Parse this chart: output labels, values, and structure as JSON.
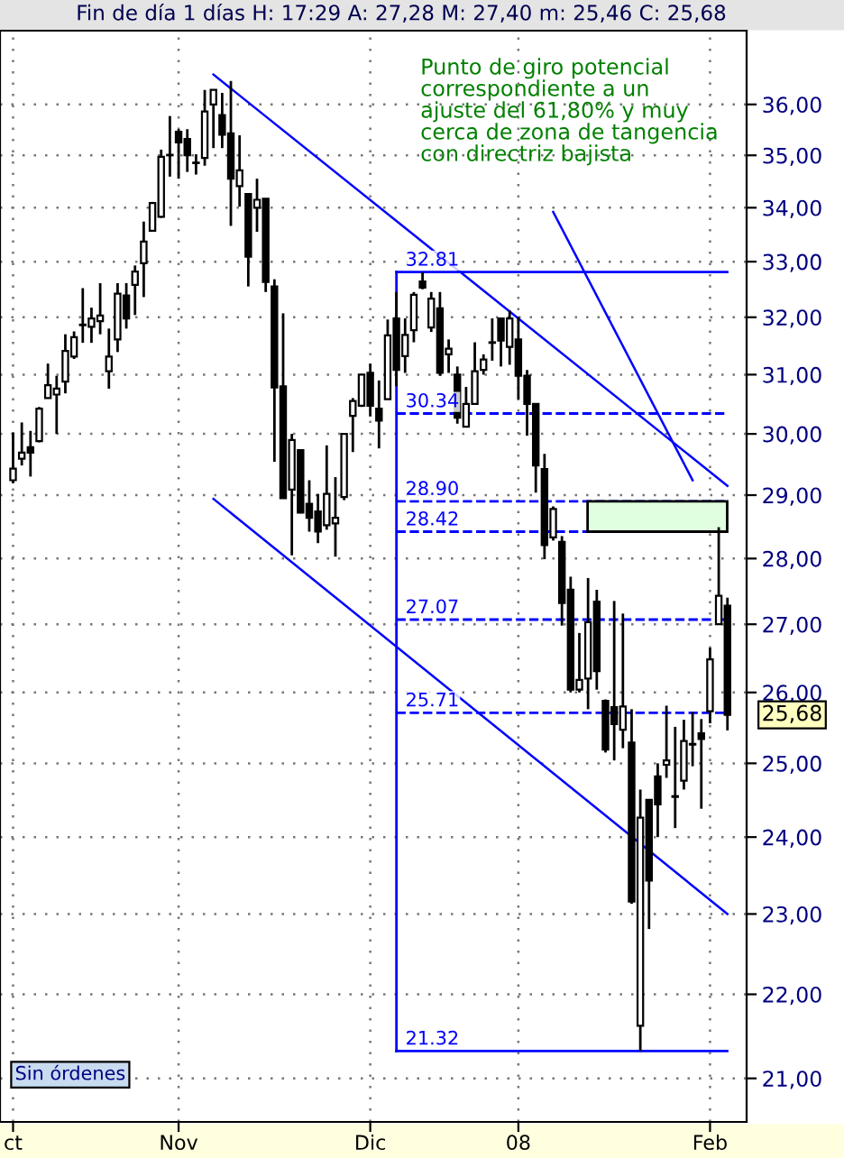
{
  "chart_data": {
    "type": "candlestick",
    "title": "Fin de día 1 días H: 17:29 A: 27,28 M: 27,40 m: 25,46 C: 25,68",
    "categories": [
      "ct",
      null,
      null,
      null,
      null,
      null,
      null,
      null,
      null,
      null,
      null,
      null,
      null,
      null,
      null,
      null,
      null,
      null,
      null,
      "Nov",
      null,
      null,
      null,
      null,
      null,
      null,
      null,
      null,
      null,
      null,
      null,
      null,
      null,
      null,
      null,
      null,
      null,
      null,
      null,
      null,
      null,
      "Dic",
      null,
      null,
      null,
      null,
      null,
      null,
      null,
      null,
      null,
      null,
      null,
      null,
      null,
      null,
      null,
      null,
      "08",
      null,
      null,
      null,
      null,
      null,
      null,
      null,
      null,
      null,
      null,
      null,
      null,
      null,
      null,
      null,
      null,
      null,
      null,
      null,
      null,
      null,
      "Feb",
      null,
      null
    ],
    "ohlc": [
      [
        29.24,
        30.02,
        29.19,
        29.43
      ],
      [
        29.59,
        30.19,
        29.48,
        29.69
      ],
      [
        29.78,
        30.05,
        29.3,
        29.69
      ],
      [
        29.88,
        30.45,
        29.86,
        30.42
      ],
      [
        30.6,
        31.19,
        30.6,
        30.82
      ],
      [
        30.66,
        30.98,
        30.0,
        30.76
      ],
      [
        30.88,
        31.7,
        30.68,
        31.41
      ],
      [
        31.31,
        31.75,
        31.27,
        31.65
      ],
      [
        31.86,
        32.52,
        31.55,
        31.87
      ],
      [
        31.83,
        32.17,
        31.55,
        31.98
      ],
      [
        31.93,
        32.61,
        31.7,
        32.03
      ],
      [
        31.06,
        31.8,
        30.76,
        31.31
      ],
      [
        31.61,
        32.61,
        31.39,
        32.42
      ],
      [
        32.39,
        32.61,
        31.8,
        31.98
      ],
      [
        32.58,
        32.93,
        32.04,
        32.82
      ],
      [
        32.97,
        33.74,
        32.36,
        33.37
      ],
      [
        33.57,
        34.11,
        33.55,
        34.09
      ],
      [
        33.83,
        35.11,
        33.81,
        34.97
      ],
      [
        35.0,
        35.77,
        34.59,
        35.01
      ],
      [
        35.46,
        35.51,
        34.55,
        35.25
      ],
      [
        35.32,
        35.51,
        34.68,
        35.0
      ],
      [
        34.85,
        35.02,
        34.63,
        34.86
      ],
      [
        34.95,
        36.29,
        34.8,
        35.86
      ],
      [
        36.0,
        36.29,
        35.14,
        36.29
      ],
      [
        35.79,
        36.23,
        35.14,
        35.4
      ],
      [
        35.43,
        36.47,
        33.66,
        34.55
      ],
      [
        34.41,
        35.39,
        34.02,
        34.71
      ],
      [
        34.26,
        34.26,
        32.55,
        33.09
      ],
      [
        34.0,
        34.55,
        33.55,
        34.15
      ],
      [
        34.17,
        34.17,
        32.45,
        32.63
      ],
      [
        32.55,
        32.68,
        29.54,
        30.78
      ],
      [
        30.8,
        32.07,
        28.95,
        28.95
      ],
      [
        29.09,
        30.0,
        28.05,
        29.9
      ],
      [
        29.73,
        29.73,
        28.71,
        28.72
      ],
      [
        28.86,
        29.24,
        28.42,
        28.64
      ],
      [
        28.74,
        29.02,
        28.24,
        28.42
      ],
      [
        28.52,
        29.81,
        28.45,
        29.02
      ],
      [
        28.55,
        29.29,
        28.03,
        28.64
      ],
      [
        28.97,
        30.0,
        28.92,
        30.0
      ],
      [
        30.3,
        30.6,
        29.7,
        30.55
      ],
      [
        30.47,
        31.0,
        30.45,
        31.0
      ],
      [
        31.03,
        31.19,
        30.29,
        30.47
      ],
      [
        30.42,
        30.9,
        29.76,
        30.22
      ],
      [
        30.58,
        31.96,
        30.58,
        31.68
      ],
      [
        31.98,
        32.45,
        30.8,
        31.08
      ],
      [
        31.32,
        31.98,
        31.03,
        31.69
      ],
      [
        31.77,
        32.45,
        31.56,
        32.4
      ],
      [
        32.64,
        32.81,
        32.5,
        32.53
      ],
      [
        31.82,
        32.45,
        31.74,
        32.33
      ],
      [
        32.16,
        32.45,
        30.98,
        31.03
      ],
      [
        31.35,
        31.61,
        31.03,
        31.45
      ],
      [
        31.0,
        31.14,
        30.17,
        30.27
      ],
      [
        30.12,
        30.79,
        30.12,
        30.5
      ],
      [
        30.5,
        31.56,
        30.5,
        31.06
      ],
      [
        31.08,
        31.35,
        31.0,
        31.26
      ],
      [
        31.55,
        31.98,
        31.24,
        31.56
      ],
      [
        31.98,
        31.98,
        31.14,
        31.59
      ],
      [
        31.48,
        32.12,
        31.17,
        31.98
      ],
      [
        31.61,
        32.01,
        30.58,
        30.98
      ],
      [
        30.98,
        31.08,
        29.97,
        30.5
      ],
      [
        30.5,
        30.5,
        29.04,
        29.48
      ],
      [
        29.42,
        29.67,
        27.99,
        28.21
      ],
      [
        28.33,
        28.82,
        28.28,
        28.78
      ],
      [
        28.26,
        28.35,
        26.98,
        27.32
      ],
      [
        27.52,
        27.72,
        26.0,
        26.04
      ],
      [
        26.04,
        26.87,
        26.0,
        26.18
      ],
      [
        26.2,
        27.7,
        25.76,
        27.03
      ],
      [
        27.34,
        27.52,
        26.04,
        26.31
      ],
      [
        25.88,
        25.9,
        25.15,
        25.19
      ],
      [
        25.79,
        27.35,
        25.04,
        25.55
      ],
      [
        25.47,
        27.16,
        25.21,
        25.8
      ],
      [
        25.29,
        25.76,
        23.13,
        23.16
      ],
      [
        21.62,
        24.64,
        21.32,
        24.26
      ],
      [
        24.5,
        24.5,
        22.81,
        23.43
      ],
      [
        24.82,
        25.0,
        24.0,
        24.44
      ],
      [
        24.98,
        25.81,
        24.8,
        25.04
      ],
      [
        24.54,
        25.51,
        24.12,
        24.55
      ],
      [
        24.76,
        25.61,
        24.64,
        25.31
      ],
      [
        25.26,
        25.72,
        24.96,
        25.27
      ],
      [
        25.42,
        25.62,
        24.38,
        25.34
      ],
      [
        25.73,
        26.65,
        25.56,
        26.48
      ],
      [
        27.0,
        28.49,
        27.0,
        27.43
      ],
      [
        27.28,
        27.4,
        25.46,
        25.68
      ]
    ],
    "series": [
      {
        "type": "line",
        "color": "#0000ff",
        "values": [
          null,
          null,
          null,
          null,
          null,
          null,
          null,
          null,
          null,
          null,
          null,
          null,
          null,
          null,
          null,
          null,
          null,
          null,
          null,
          null,
          null,
          null,
          null,
          36.6,
          null,
          null,
          null,
          null,
          null,
          null,
          null,
          null,
          null,
          null,
          null,
          null,
          null,
          null,
          null,
          null,
          null,
          null,
          null,
          null,
          null,
          null,
          null,
          null,
          null,
          null,
          null,
          null,
          null,
          null,
          null,
          null,
          null,
          null,
          null,
          null,
          null,
          null,
          null,
          null,
          null,
          null,
          null,
          null,
          null,
          null,
          null,
          null,
          null,
          null,
          null,
          null,
          null,
          null,
          null,
          null,
          null,
          null,
          29.15
        ]
      },
      {
        "type": "line",
        "color": "#0000ff",
        "values": [
          null,
          null,
          null,
          null,
          null,
          null,
          null,
          null,
          null,
          null,
          null,
          null,
          null,
          null,
          null,
          null,
          null,
          null,
          null,
          null,
          null,
          null,
          null,
          28.94,
          null,
          null,
          null,
          null,
          null,
          null,
          null,
          null,
          null,
          null,
          null,
          null,
          null,
          null,
          null,
          null,
          null,
          null,
          null,
          null,
          null,
          null,
          null,
          null,
          null,
          null,
          null,
          null,
          null,
          null,
          null,
          null,
          null,
          null,
          null,
          null,
          null,
          null,
          null,
          null,
          null,
          null,
          null,
          null,
          null,
          null,
          null,
          null,
          null,
          null,
          null,
          null,
          null,
          null,
          null,
          null,
          null,
          null,
          23.0
        ]
      },
      {
        "type": "line",
        "color": "#0000ff",
        "values": [
          null,
          null,
          null,
          null,
          null,
          null,
          null,
          null,
          null,
          null,
          null,
          null,
          null,
          null,
          null,
          null,
          null,
          null,
          null,
          null,
          null,
          null,
          null,
          null,
          null,
          null,
          null,
          null,
          null,
          null,
          null,
          null,
          null,
          null,
          null,
          null,
          null,
          null,
          null,
          null,
          null,
          null,
          null,
          null,
          null,
          null,
          null,
          null,
          null,
          null,
          null,
          null,
          null,
          null,
          null,
          null,
          null,
          null,
          null,
          null,
          null,
          null,
          33.92,
          null,
          null,
          null,
          null,
          null,
          null,
          null,
          null,
          null,
          null,
          null,
          null,
          null,
          null,
          null,
          29.24,
          null,
          null,
          null,
          null
        ]
      }
    ],
    "log": true,
    "ylim": [
      20.5,
      37.5
    ],
    "yticks": [
      {
        "value": 21,
        "label": "21,00"
      },
      {
        "value": 22,
        "label": "22,00"
      },
      {
        "value": 23,
        "label": "23,00"
      },
      {
        "value": 24,
        "label": "24,00"
      },
      {
        "value": 25,
        "label": "25,00"
      },
      {
        "value": 26,
        "label": "26,00"
      },
      {
        "value": 27,
        "label": "27,00"
      },
      {
        "value": 28,
        "label": "28,00"
      },
      {
        "value": 29,
        "label": "29,00"
      },
      {
        "value": 30,
        "label": "30,00"
      },
      {
        "value": 31,
        "label": "31,00"
      },
      {
        "value": 32,
        "label": "32,00"
      },
      {
        "value": 33,
        "label": "33,00"
      },
      {
        "value": 34,
        "label": "34,00"
      },
      {
        "value": 35,
        "label": "35,00"
      },
      {
        "value": 36,
        "label": "36,00"
      }
    ],
    "grid": true,
    "ref_lines": [
      {
        "axis": "y",
        "value": 32.81,
        "label": "32.81",
        "color": "#0000ff",
        "line_style": "solid"
      },
      {
        "axis": "y",
        "value": 30.34,
        "label": "30.34",
        "color": "#0000ff",
        "line_style": "dashed"
      },
      {
        "axis": "y",
        "value": 28.9,
        "label": "28.90",
        "color": "#0000ff",
        "line_style": "dashed"
      },
      {
        "axis": "y",
        "value": 28.42,
        "label": "28.42",
        "color": "#0000ff",
        "line_style": "dashed"
      },
      {
        "axis": "y",
        "value": 27.07,
        "label": "27.07",
        "color": "#0000ff",
        "line_style": "dashed"
      },
      {
        "axis": "y",
        "value": 25.71,
        "label": "25.71",
        "color": "#0000ff",
        "line_style": "dashed"
      },
      {
        "axis": "y",
        "value": 21.32,
        "label": "21.32",
        "color": "#0000ff",
        "line_style": "solid"
      }
    ],
    "bands": [
      {
        "axis": "y",
        "from": 28.42,
        "to": 28.9,
        "color": "#e0ffe0"
      }
    ],
    "annotations": [
      "Punto de giro potencial\ncorrespondiente a un\najuste del 61,80% y muy\ncerca de zona de tangencia\ncon directriz bajista",
      "Sin órdenes",
      "25,68"
    ]
  }
}
